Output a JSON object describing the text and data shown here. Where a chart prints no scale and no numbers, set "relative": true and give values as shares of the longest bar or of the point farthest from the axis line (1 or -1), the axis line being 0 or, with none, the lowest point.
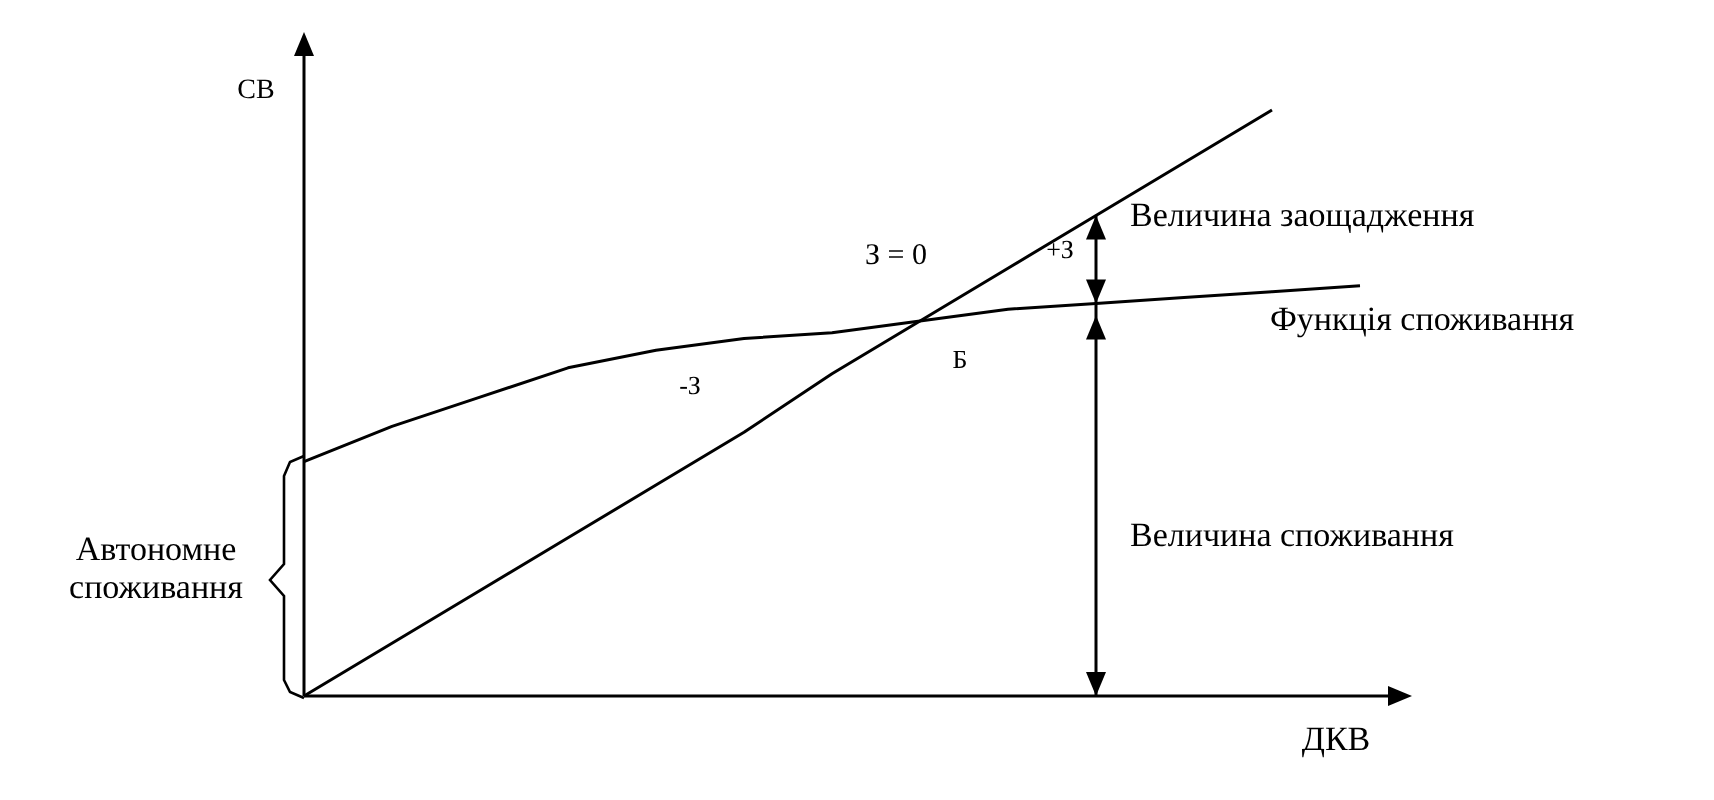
{
  "chart_data": {
    "type": "line",
    "relative": true,
    "xlabel": "ДКВ",
    "ylabel": "СВ",
    "marker": "none",
    "categories": [
      null,
      null,
      null,
      null,
      null,
      null,
      null,
      null,
      null,
      null,
      null,
      null,
      null
    ],
    "series": [
      {
        "color": "#000000",
        "values": [
          0,
          0.09,
          0.18,
          0.27,
          0.36,
          0.45,
          0.55,
          0.64,
          0.73,
          0.82,
          0.91,
          1,
          null
        ]
      },
      {
        "name": "Функція споживання",
        "color": "#000000",
        "values": [
          0.4,
          0.46,
          0.51,
          0.56,
          0.59,
          0.61,
          0.62,
          0.64,
          0.66,
          0.67,
          0.68,
          0.69,
          0.7
        ]
      }
    ],
    "annotations": [
      "Величина заощадження",
      "З = 0",
      "+З",
      "-З",
      "Б",
      "Величина споживання",
      "Автономне споживання"
    ]
  }
}
